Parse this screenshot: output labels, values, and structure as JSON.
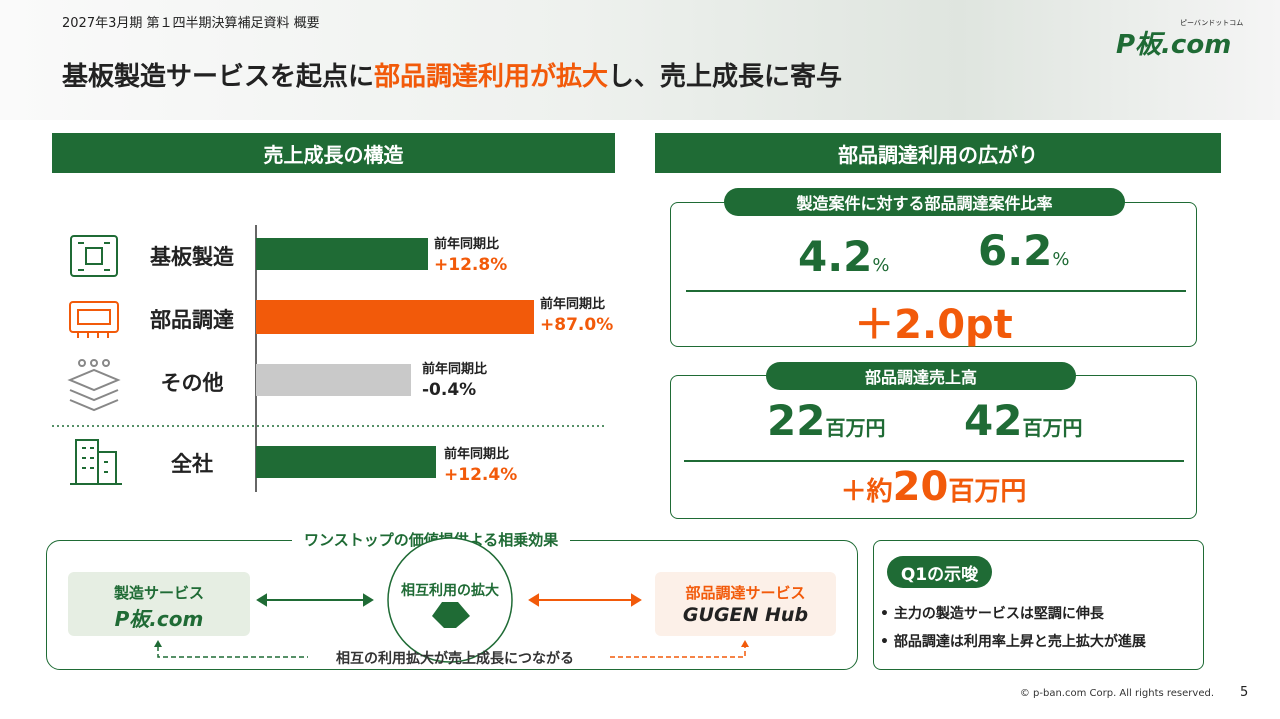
{
  "header": {
    "period": "2027年3月期 第１四半期決算補足資料 概要",
    "title_parts": [
      "基板製造サービスを起点に",
      "部品調達利用が拡大",
      "し、売上成長に寄与"
    ],
    "logo": "P板.com",
    "logo_ruby": "ピーバンドットコム"
  },
  "left": {
    "heading": "売上成長の構造",
    "rows": [
      {
        "label": "基板製造",
        "caption": "前年同期比",
        "change": "+12.8%"
      },
      {
        "label": "部品調達",
        "caption": "前年同期比",
        "change": "+87.0%"
      },
      {
        "label": "その他",
        "caption": "前年同期比",
        "change": "-0.4%"
      }
    ],
    "total": {
      "label": "全社",
      "caption": "前年同期比",
      "change": "+12.4%"
    }
  },
  "right": {
    "heading": "部品調達利用の広がり",
    "ratio": {
      "title": "製造案件に対する部品調達案件比率",
      "before": "4.2",
      "after": "6.2",
      "unit": "%",
      "diff": "＋2.0pt"
    },
    "sales": {
      "title": "部品調達売上高",
      "before": "22",
      "after": "42",
      "unit": "百万円",
      "diff_prefix": "＋約",
      "diff": "20"
    }
  },
  "synergy": {
    "title": "ワンストップの価値提供よる相乗効果",
    "left_card": "製造サービス",
    "center": "相互利用の拡大",
    "right_card": "部品調達サービス",
    "right_logo": "GUGEN Hub",
    "note": "相互の利用拡大が売上成長につながる"
  },
  "insight": {
    "title": "Q1の示唆",
    "bullets": [
      "主力の製造サービスは堅調に伸長",
      "部品調達は利用率上昇と売上拡大が進展"
    ]
  },
  "footer": {
    "copyright": "© p-ban.com Corp. All rights reserved.",
    "page": "5"
  }
}
